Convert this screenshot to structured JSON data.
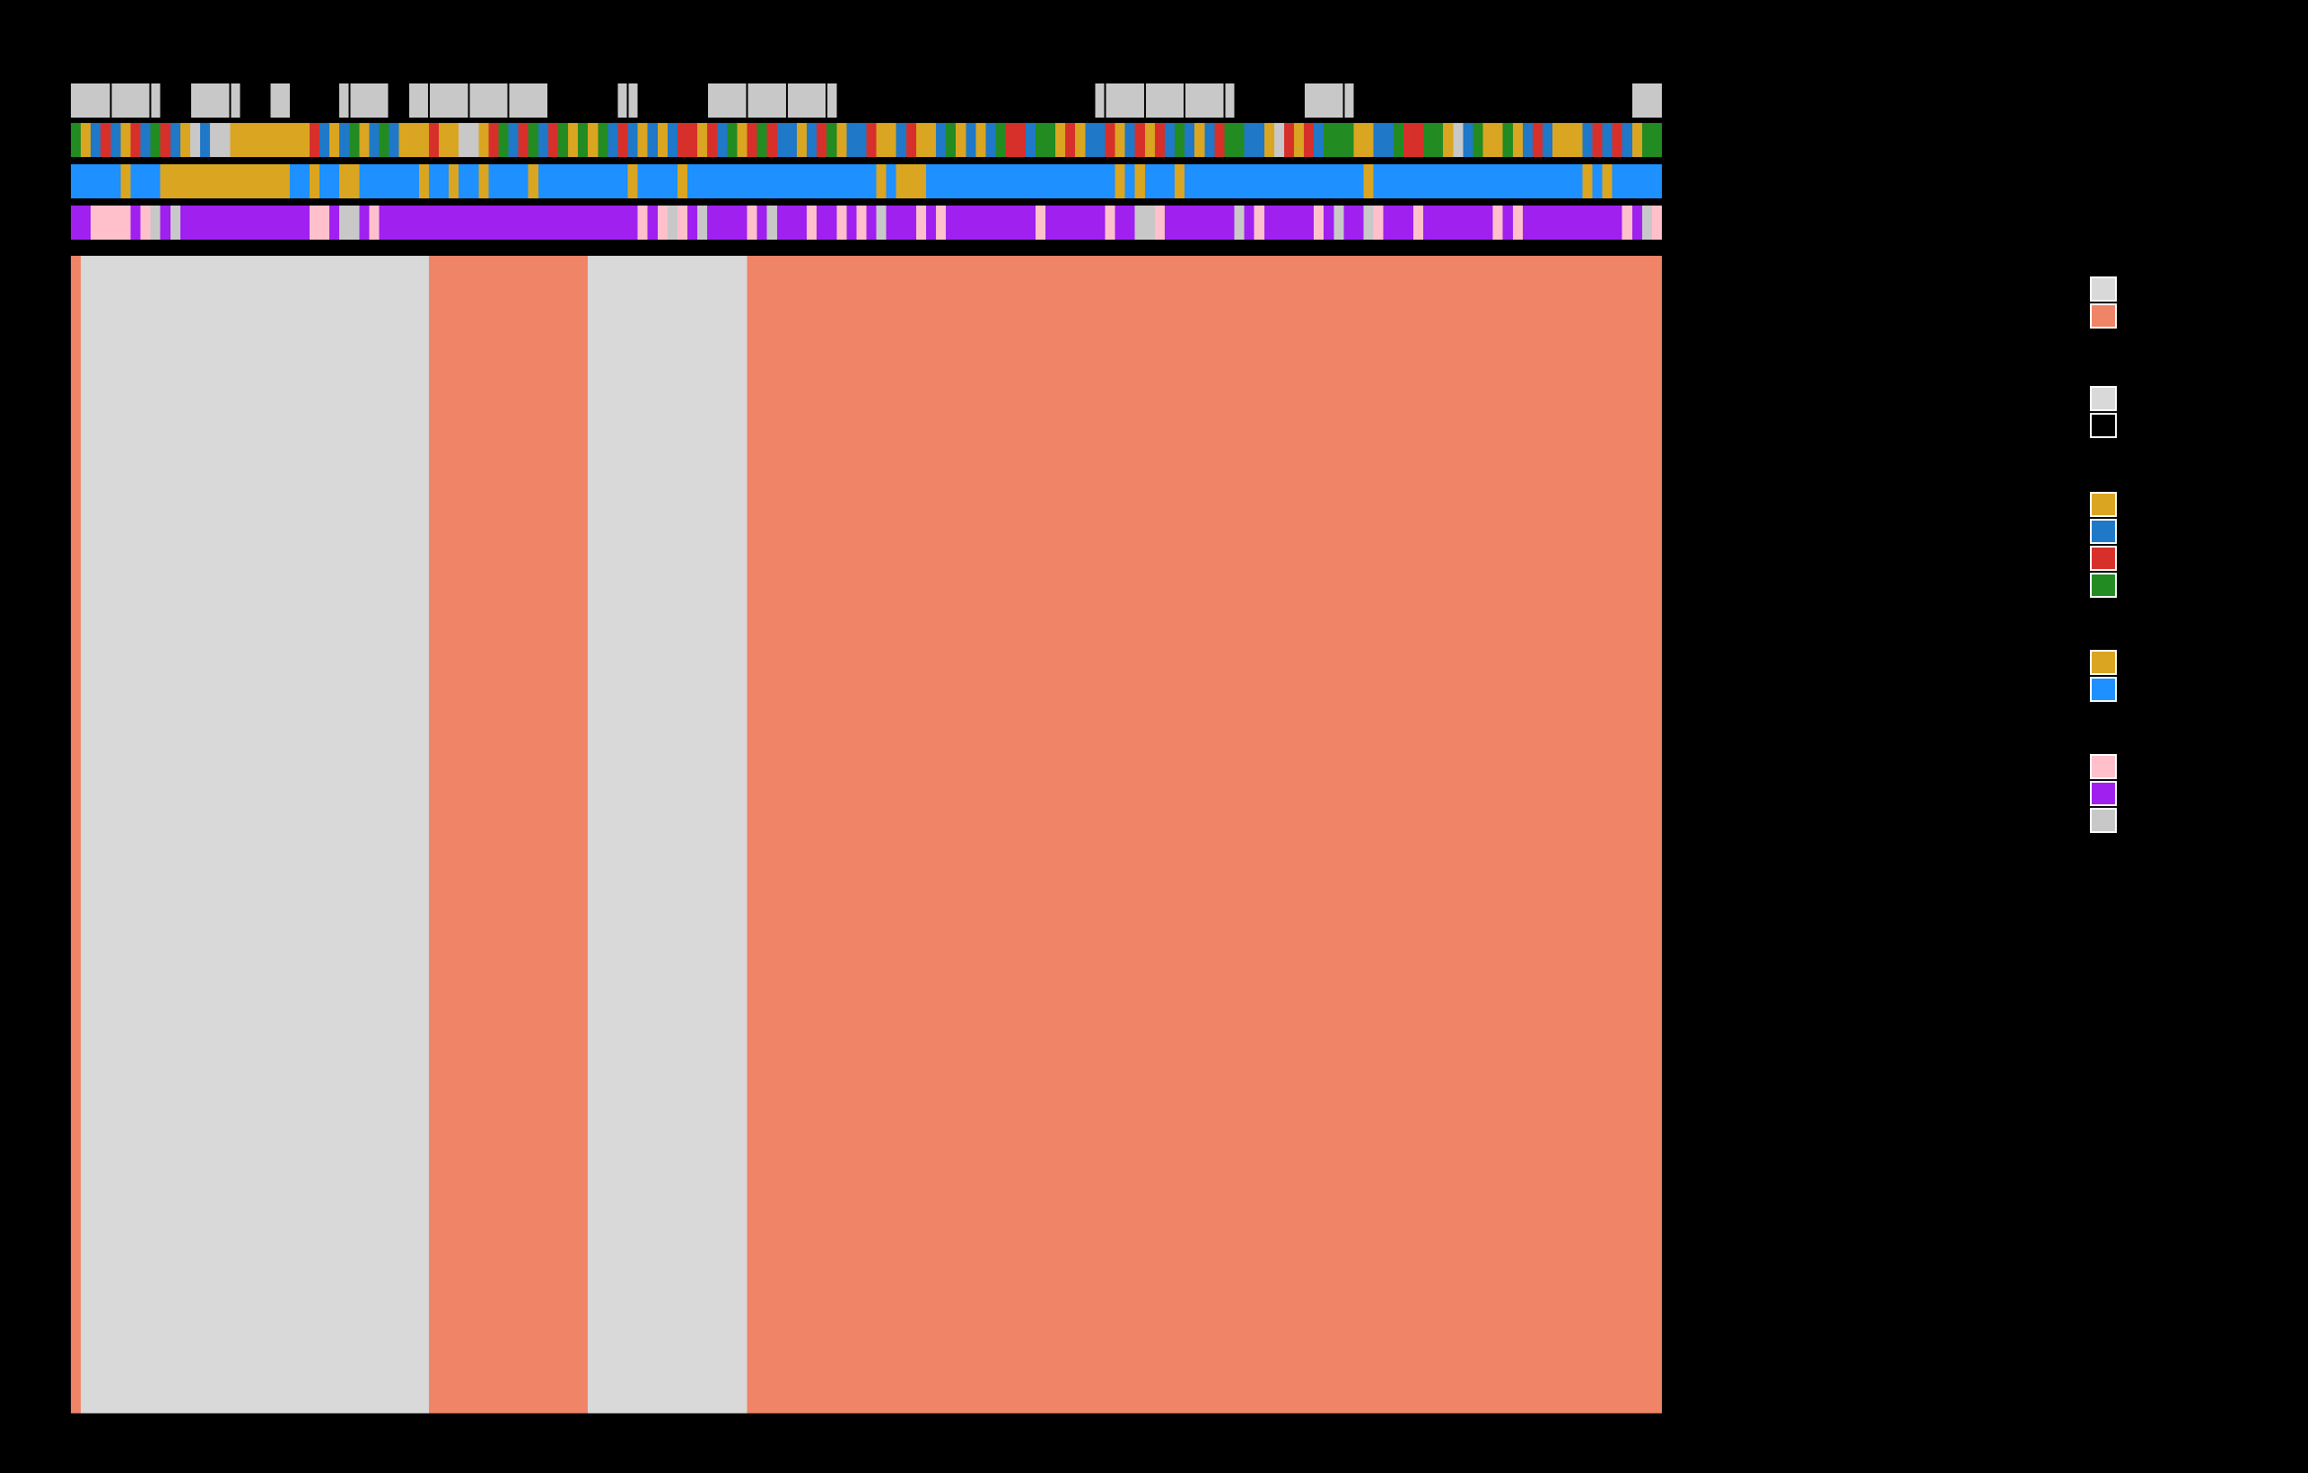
{
  "chart_data": {
    "type": "heatmap",
    "title": "",
    "xlabel": "",
    "ylabel": "",
    "grid": false,
    "legend_position": "right",
    "n_columns": 160,
    "n_rows": 28,
    "cell_colors": {
      "0": "#d9d9d9",
      "1": "#f08466"
    },
    "annotation_tracks": [
      {
        "name": "",
        "palette": [
          "#c8c8c8",
          "#000000"
        ],
        "values": "0000000001110000011100111110000011000000000000001111111001111111000000000000011111111111111111111111111000000000000001111111000001111111111111111111111111111000"
      },
      {
        "name": "",
        "palette": [
          "#daa520",
          "#1f78c8",
          "#d7302b",
          "#228b22",
          "#c8c8c8"
        ],
        "values": "3012102132104144000000002101301310002004402312312303031210101220213023211012301120012001301013221330201120120213101233110420213330011322330413003012100012121033"
      },
      {
        "name": "",
        "palette": [
          "#daa520",
          "#1e90ff"
        ],
        "values": "1111101110000000000000110110011111101101101111011111111101111011111111111111111110100011111111111111111110101110111111111111111111011111111111111111111101011111"
      },
      {
        "name": "",
        "palette": [
          "#ffc0cb",
          "#a020f0",
          "#c8c8c8"
        ],
        "values": "1100001021211111111111110012210111111111111111111111111110102012111101211101101012111010111111111011111101122011111112101111101211201110111111101011111111110120"
      }
    ],
    "rows": [
      "1000000000000000000000000000000000001111111111111111000000000000000011111111111111111111111111111111111111111111111111111111111111111111111111111111111111111111",
      "1000000000000000000000000000000000001111111111111111000000000000000011111111111111111111111111111111111111111111111111111111111111111111111111111111111111111111",
      "1000000000000000000000000000000000001111111111111111000000000000000011111111111111111111111111111111111111111111111111111111111111111111111111111111111111111111",
      "1000000000000000000000000000000000001111111111111111000000000000000011111111111111111111111111111111111111111111111111111111111111111111111111111111111111111111",
      "1000000000000000000000000000000000001111111111111111000000000000000011111111111111111111111111111111111111111111111111111111111111111111111111111111111111111111",
      "1000000000000000000000000000000000001111111111111111000000000000000011111111111111111111111111111111111111111111111111111111111111111111111111111111111111111111",
      "1000000000000000000000000000000000001111111111111111000000000000000011111111111111111111111111111111111111111111111111111111111111111111111111111111111111111111",
      "1000000000000000000000000000000000001111111111111111000000000000000011111111111111111111111111111111111111111111111111111111111111111111111111111111111111111111",
      "1000000000000000000000000000000000001111111111111111000000000000000011111111111111111111111111111111111111111111111111111111111111111111111111111111111111111111",
      "1000000000000000000000000000000000001111111111111111000000000000000011111111111111111111111111111111111111111111111111111111111111111111111111111111111111111111",
      "1000000000000000000000000000000000001111111111111111000000000000000011111111111111111111111111111111111111111111111111111111111111111111111111111111111111111111",
      "1000000000000000000000000000000000001111111111111111000000000000000011111111111111111111111111111111111111111111111111111111111111111111111111111111111111111111",
      "1000000000000000000000000000000000001111111111111111000000000000000011111111111111111111111111111111111111111111111111111111111111111111111111111111111111111111",
      "1000000000000000000000000000000000001111111111111111000000000000000011111111111111111111111111111111111111111111111111111111111111111111111111111111111111111111",
      "1000000000000000000000000000000000001111111111111111000000000000000011111111111111111111111111111111111111111111111111111111111111111111111111111111111111111111",
      "1000000000000000000000000000000000001111111111111111000000000000000011111111111111111111111111111111111111111111111111111111111111111111111111111111111111111111",
      "1000000000000000000000000000000000001111111111111111000000000000000011111111111111111111111111111111111111111111111111111111111111111111111111111111111111111111",
      "1000000000000000000000000000000000001111111111111111000000000000000011111111111111111111111111111111111111111111111111111111111111111111111111111111111111111111",
      "1000000000000000000000000000000000001111111111111111000000000000000011111111111111111111111111111111111111111111111111111111111111111111111111111111111111111111",
      "1000000000000000000000000000000000001111111111111111000000000000000011111111111111111111111111111111111111111111111111111111111111111111111111111111111111111111",
      "1000000000000000000000000000000000001111111111111111000000000000000011111111111111111111111111111111111111111111111111111111111111111111111111111111111111111111",
      "1000000000000000000000000000000000001111111111111111000000000000000011111111111111111111111111111111111111111111111111111111111111111111111111111111111111111111",
      "1000000000000000000000000000000000001111111111111111000000000000000011111111111111111111111111111111111111111111111111111111111111111111111111111111111111111111",
      "1000000000000000000000000000000000001111111111111111000000000000000011111111111111111111111111111111111111111111111111111111111111111111111111111111111111111111",
      "1000000000000000000000000000000000001111111111111111000000000000000011111111111111111111111111111111111111111111111111111111111111111111111111111111111111111111",
      "1000000000000000000000000000000000001111111111111111000000000000000011111111111111111111111111111111111111111111111111111111111111111111111111111111111111111111",
      "1000000000000000000000000000000000001111111111111111000000000000000011111111111111111111111111111111111111111111111111111111111111111111111111111111111111111111",
      "1000000000000000000000000000000000001111111111111111000000000000000011111111111111111111111111111111111111111111111111111111111111111111111111111111111111111111"
    ],
    "legends": [
      {
        "name": "",
        "colors": [
          "#d9d9d9",
          "#f08466"
        ]
      },
      {
        "name": "",
        "colors": [
          "#d9d9d9",
          "#000000"
        ]
      },
      {
        "name": "",
        "colors": [
          "#daa520",
          "#1f78c8",
          "#d7302b",
          "#228b22"
        ]
      },
      {
        "name": "",
        "colors": [
          "#daa520",
          "#1e90ff"
        ]
      },
      {
        "name": "",
        "colors": [
          "#ffc0cb",
          "#a020f0",
          "#c8c8c8"
        ]
      }
    ]
  }
}
